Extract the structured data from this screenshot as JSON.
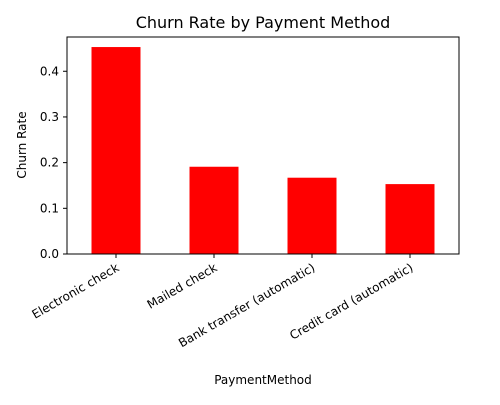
{
  "chart_data": {
    "type": "bar",
    "title": "Churn Rate by Payment Method",
    "xlabel": "PaymentMethod",
    "ylabel": "Churn Rate",
    "categories": [
      "Electronic check",
      "Mailed check",
      "Bank transfer (automatic)",
      "Credit card (automatic)"
    ],
    "values": [
      0.453,
      0.191,
      0.167,
      0.153
    ],
    "ylim": [
      0,
      0.475
    ],
    "yticks": [
      "0.0",
      "0.1",
      "0.2",
      "0.3",
      "0.4"
    ],
    "bar_color": "#ff0000",
    "grid": false,
    "legend": "none"
  }
}
